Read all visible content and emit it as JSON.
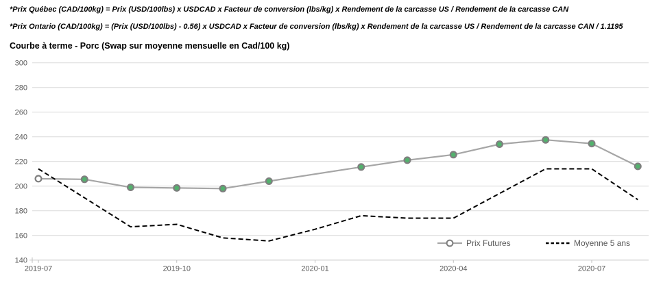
{
  "header": {
    "formula_quebec": "*Prix Québec (CAD/100kg) = Prix (USD/100lbs) x USDCAD x Facteur de conversion (lbs/kg) x Rendement de la carcasse US / Rendement de la carcasse CAN",
    "formula_ontario": "*Prix Ontario (CAD/100kg) = (Prix (USD/100lbs) - 0.56) x USDCAD x Facteur de conversion (lbs/kg) x Rendement de la carcasse US / Rendement de la carcasse CAN / 1.1195",
    "chart_title": "Courbe à terme - Porc (Swap sur moyenne mensuelle en Cad/100 kg)"
  },
  "chart_data": {
    "type": "line",
    "title": "Courbe à terme - Porc (Swap sur moyenne mensuelle en Cad/100 kg)",
    "ylabel": "",
    "xlabel": "",
    "ylim": [
      140,
      300
    ],
    "y_ticks": [
      140,
      160,
      180,
      200,
      220,
      240,
      260,
      280,
      300
    ],
    "x_ticks": [
      {
        "label": "2019-07",
        "month_index": 0
      },
      {
        "label": "2019-10",
        "month_index": 3
      },
      {
        "label": "2020-01",
        "month_index": 6
      },
      {
        "label": "2020-04",
        "month_index": 9
      },
      {
        "label": "2020-07",
        "month_index": 12
      }
    ],
    "grid": true,
    "legend_position": "inside-bottom-right",
    "series": [
      {
        "name": "Prix Futures",
        "style": "solid",
        "line_color": "#a6a6a6",
        "marker": "circle",
        "marker_ring_color": "#7f7f7f",
        "marker_fill_default": "#53b16d",
        "points": [
          {
            "month": "2019-07",
            "month_index": 0,
            "value": 206,
            "marker_fill": "#ffffff"
          },
          {
            "month": "2019-08",
            "month_index": 1,
            "value": 205.5
          },
          {
            "month": "2019-09",
            "month_index": 2,
            "value": 199
          },
          {
            "month": "2019-10",
            "month_index": 3,
            "value": 198.5
          },
          {
            "month": "2019-11",
            "month_index": 4,
            "value": 198
          },
          {
            "month": "2019-12",
            "month_index": 5,
            "value": 204
          },
          {
            "month": "2020-02",
            "month_index": 7,
            "value": 215.5
          },
          {
            "month": "2020-03",
            "month_index": 8,
            "value": 221
          },
          {
            "month": "2020-04",
            "month_index": 9,
            "value": 225.5
          },
          {
            "month": "2020-05",
            "month_index": 10,
            "value": 234
          },
          {
            "month": "2020-06",
            "month_index": 11,
            "value": 237.5
          },
          {
            "month": "2020-07",
            "month_index": 12,
            "value": 234.5
          },
          {
            "month": "2020-08",
            "month_index": 13,
            "value": 216
          }
        ]
      },
      {
        "name": "Moyenne 5 ans",
        "style": "dashed",
        "line_color": "#000000",
        "marker": "none",
        "points": [
          {
            "month": "2019-07",
            "month_index": 0,
            "value": 214
          },
          {
            "month": "2019-08",
            "month_index": 1,
            "value": 190.5
          },
          {
            "month": "2019-09",
            "month_index": 2,
            "value": 167
          },
          {
            "month": "2019-10",
            "month_index": 3,
            "value": 169
          },
          {
            "month": "2019-11",
            "month_index": 4,
            "value": 158
          },
          {
            "month": "2019-12",
            "month_index": 5,
            "value": 155.5
          },
          {
            "month": "2020-01",
            "month_index": 6,
            "value": 165
          },
          {
            "month": "2020-02",
            "month_index": 7,
            "value": 176
          },
          {
            "month": "2020-03",
            "month_index": 8,
            "value": 174
          },
          {
            "month": "2020-04",
            "month_index": 9,
            "value": 174
          },
          {
            "month": "2020-05",
            "month_index": 10,
            "value": 194
          },
          {
            "month": "2020-06",
            "month_index": 11,
            "value": 214
          },
          {
            "month": "2020-07",
            "month_index": 12,
            "value": 214
          },
          {
            "month": "2020-08",
            "month_index": 13,
            "value": 189
          }
        ]
      }
    ],
    "colors": {
      "gridline": "#d9d9d9",
      "axis_line": "#bfbfbf",
      "axis_label": "#595959",
      "legend_text": "#595959"
    }
  }
}
